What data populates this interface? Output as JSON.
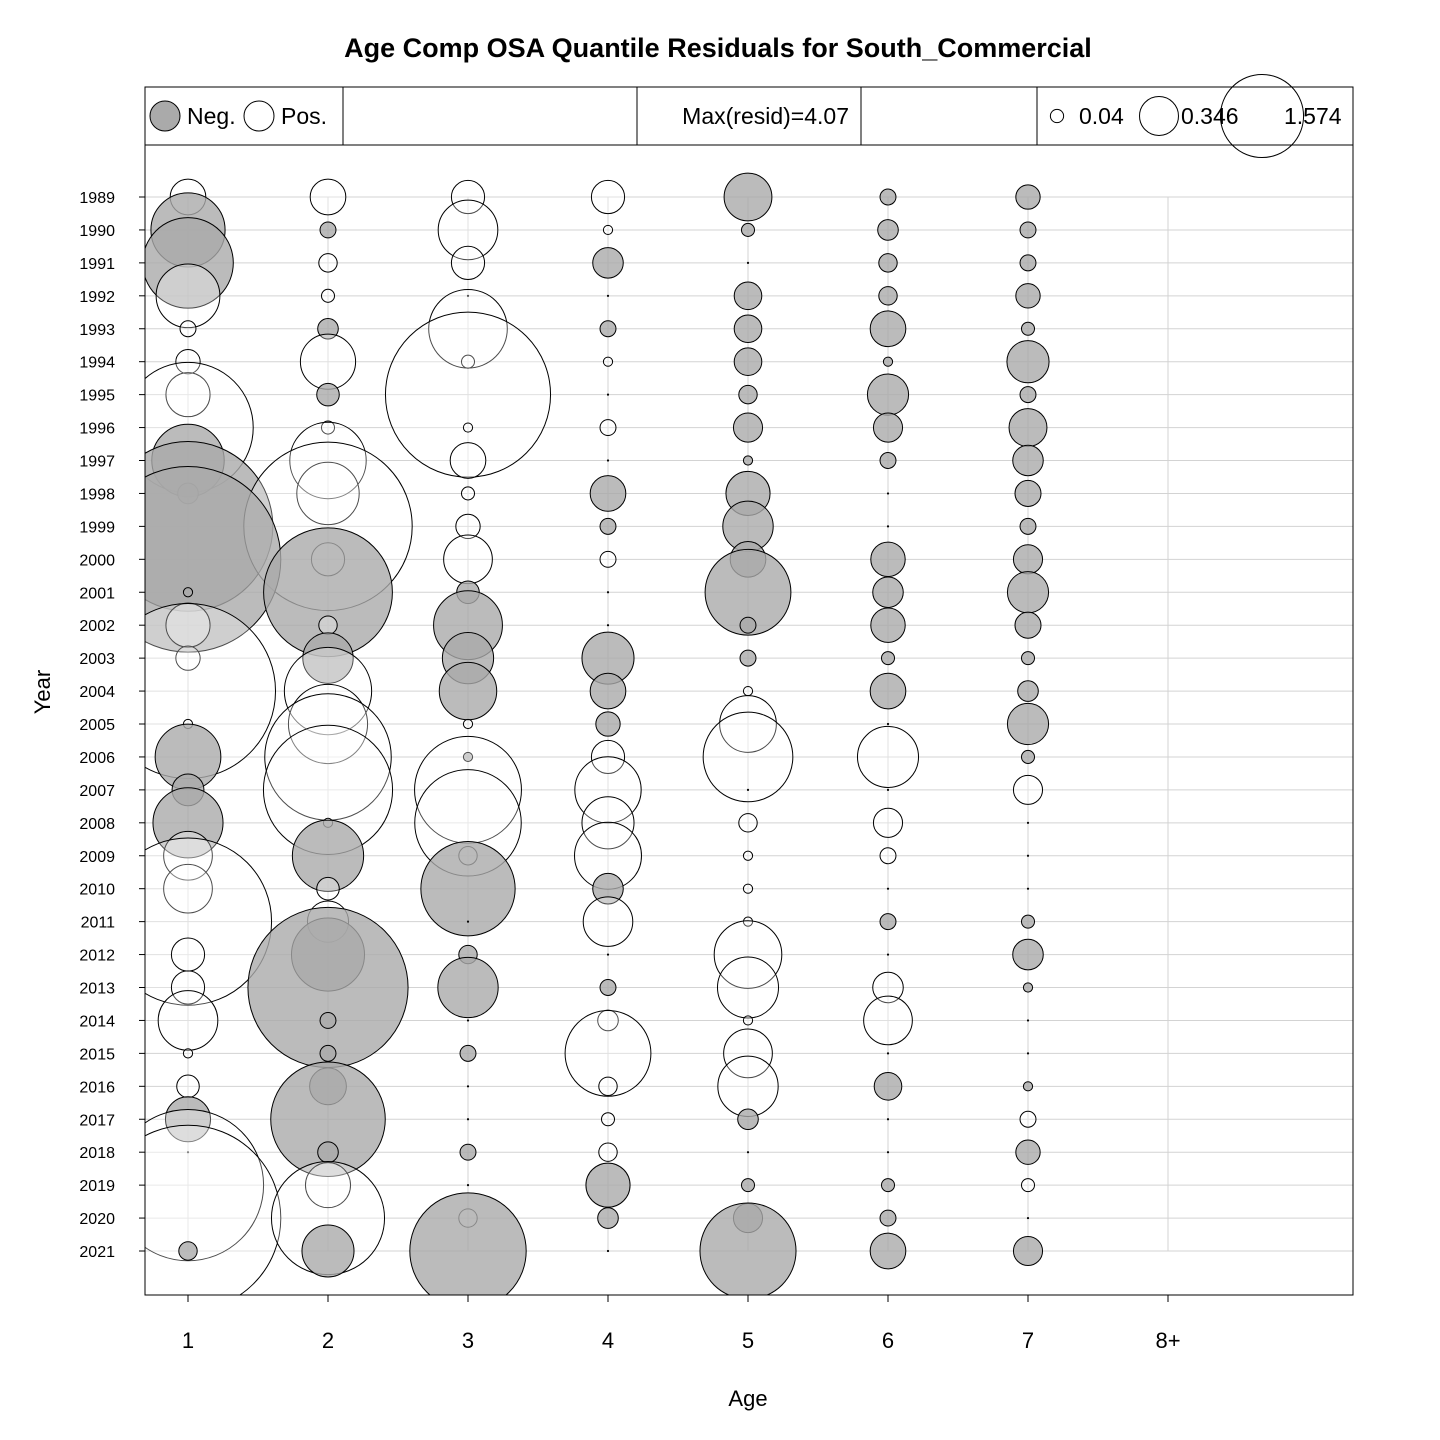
{
  "chart_data": {
    "type": "scatter",
    "title": "Age Comp OSA Quantile Residuals for South_Commercial",
    "xlabel": "Age",
    "ylabel": "Year",
    "categories": [
      "1",
      "2",
      "3",
      "4",
      "5",
      "6",
      "7",
      "8+"
    ],
    "years": [
      "1989",
      "1990",
      "1991",
      "1992",
      "1993",
      "1994",
      "1995",
      "1996",
      "1997",
      "1998",
      "1999",
      "2000",
      "2001",
      "2002",
      "2003",
      "2004",
      "2005",
      "2006",
      "2007",
      "2008",
      "2009",
      "2010",
      "2011",
      "2012",
      "2013",
      "2014",
      "2015",
      "2016",
      "2017",
      "2018",
      "2019",
      "2020",
      "2021"
    ],
    "grid": true,
    "legend_sign": {
      "neg_label": "Neg.",
      "pos_label": "Pos.",
      "neg_color": "#aaaaaa",
      "pos_color": "#ffffff"
    },
    "legend_max": "Max(resid)=4.07",
    "legend_sizes": {
      "labels": [
        "0.04",
        "0.346",
        "1.574"
      ],
      "values": [
        0.04,
        0.346,
        1.574
      ]
    },
    "residuals": [
      [
        0.15,
        0.15,
        0.13,
        0.13,
        -0.27,
        -0.03,
        -0.07,
        null
      ],
      [
        -0.65,
        -0.03,
        0.42,
        0.01,
        -0.02,
        -0.05,
        -0.03,
        null
      ],
      [
        -0.97,
        0.04,
        0.13,
        -0.11,
        0.0,
        -0.04,
        -0.03,
        null
      ],
      [
        0.48,
        0.02,
        0.0,
        0.0,
        -0.09,
        -0.04,
        -0.07,
        null
      ],
      [
        0.03,
        -0.05,
        0.73,
        -0.03,
        -0.09,
        -0.15,
        -0.02,
        null
      ],
      [
        0.07,
        0.36,
        0.02,
        0.01,
        -0.09,
        -0.01,
        -0.21,
        null
      ],
      [
        0.23,
        -0.06,
        3.22,
        0.0,
        -0.04,
        -0.2,
        -0.03,
        null
      ],
      [
        2.01,
        0.02,
        0.01,
        0.03,
        -0.1,
        -0.1,
        -0.17,
        null
      ],
      [
        -0.62,
        0.69,
        0.15,
        0.0,
        -0.01,
        -0.03,
        -0.11,
        null
      ],
      [
        -0.05,
        0.46,
        0.02,
        -0.15,
        -0.23,
        0.0,
        -0.08,
        null
      ],
      [
        -3.4,
        3.35,
        0.07,
        -0.03,
        -0.3,
        0.0,
        -0.03,
        null
      ],
      [
        -4.07,
        0.13,
        0.28,
        0.03,
        -0.15,
        -0.14,
        -0.1,
        null
      ],
      [
        -0.01,
        -1.96,
        -0.06,
        0.0,
        -0.87,
        -0.11,
        -0.2,
        null
      ],
      [
        0.23,
        0.04,
        -0.56,
        0.0,
        -0.03,
        -0.14,
        -0.08,
        null
      ],
      [
        0.07,
        -0.3,
        -0.31,
        -0.32,
        -0.03,
        -0.02,
        -0.02,
        null
      ],
      [
        3.62,
        0.9,
        -0.39,
        -0.15,
        0.01,
        -0.15,
        -0.05,
        null
      ],
      [
        0.01,
        0.74,
        0.01,
        -0.07,
        0.38,
        0.0,
        -0.2,
        null
      ],
      [
        -0.51,
        1.89,
        -0.01,
        0.13,
        0.95,
        0.44,
        -0.02,
        null
      ],
      [
        -0.12,
        1.97,
        1.35,
        0.52,
        0.0,
        0.0,
        0.1,
        null
      ],
      [
        -0.58,
        0.01,
        1.34,
        0.32,
        0.04,
        0.1,
        0.0,
        null
      ],
      [
        0.28,
        -0.6,
        0.04,
        0.53,
        0.01,
        0.03,
        0.0,
        null
      ],
      [
        0.28,
        0.06,
        -1.05,
        -0.11,
        0.01,
        0.0,
        0.0,
        null
      ],
      [
        3.3,
        0.2,
        0.0,
        0.29,
        0.01,
        -0.03,
        -0.02,
        null
      ],
      [
        0.13,
        -0.63,
        -0.04,
        0.0,
        0.54,
        0.0,
        -0.11,
        null
      ],
      [
        0.13,
        -3.03,
        -0.43,
        -0.03,
        0.44,
        0.11,
        -0.01,
        null
      ],
      [
        0.42,
        -0.03,
        0.0,
        0.05,
        0.01,
        0.28,
        0.0,
        null
      ],
      [
        0.01,
        -0.03,
        -0.03,
        0.87,
        0.28,
        0.0,
        0.0,
        null
      ],
      [
        0.06,
        -0.16,
        0.0,
        0.04,
        0.43,
        -0.09,
        -0.01,
        null
      ],
      [
        -0.24,
        -1.55,
        0.0,
        0.02,
        -0.05,
        0.0,
        0.03,
        null
      ],
      [
        0.0,
        -0.05,
        -0.03,
        0.04,
        0.0,
        0.0,
        -0.07,
        null
      ],
      [
        2.7,
        0.24,
        0.0,
        -0.23,
        -0.02,
        -0.02,
        0.02,
        null
      ],
      [
        4.07,
        1.51,
        0.04,
        -0.05,
        -0.1,
        -0.03,
        0.0,
        null
      ],
      [
        -0.04,
        -0.32,
        -1.6,
        0.0,
        -1.09,
        -0.15,
        -0.1,
        null
      ]
    ]
  }
}
